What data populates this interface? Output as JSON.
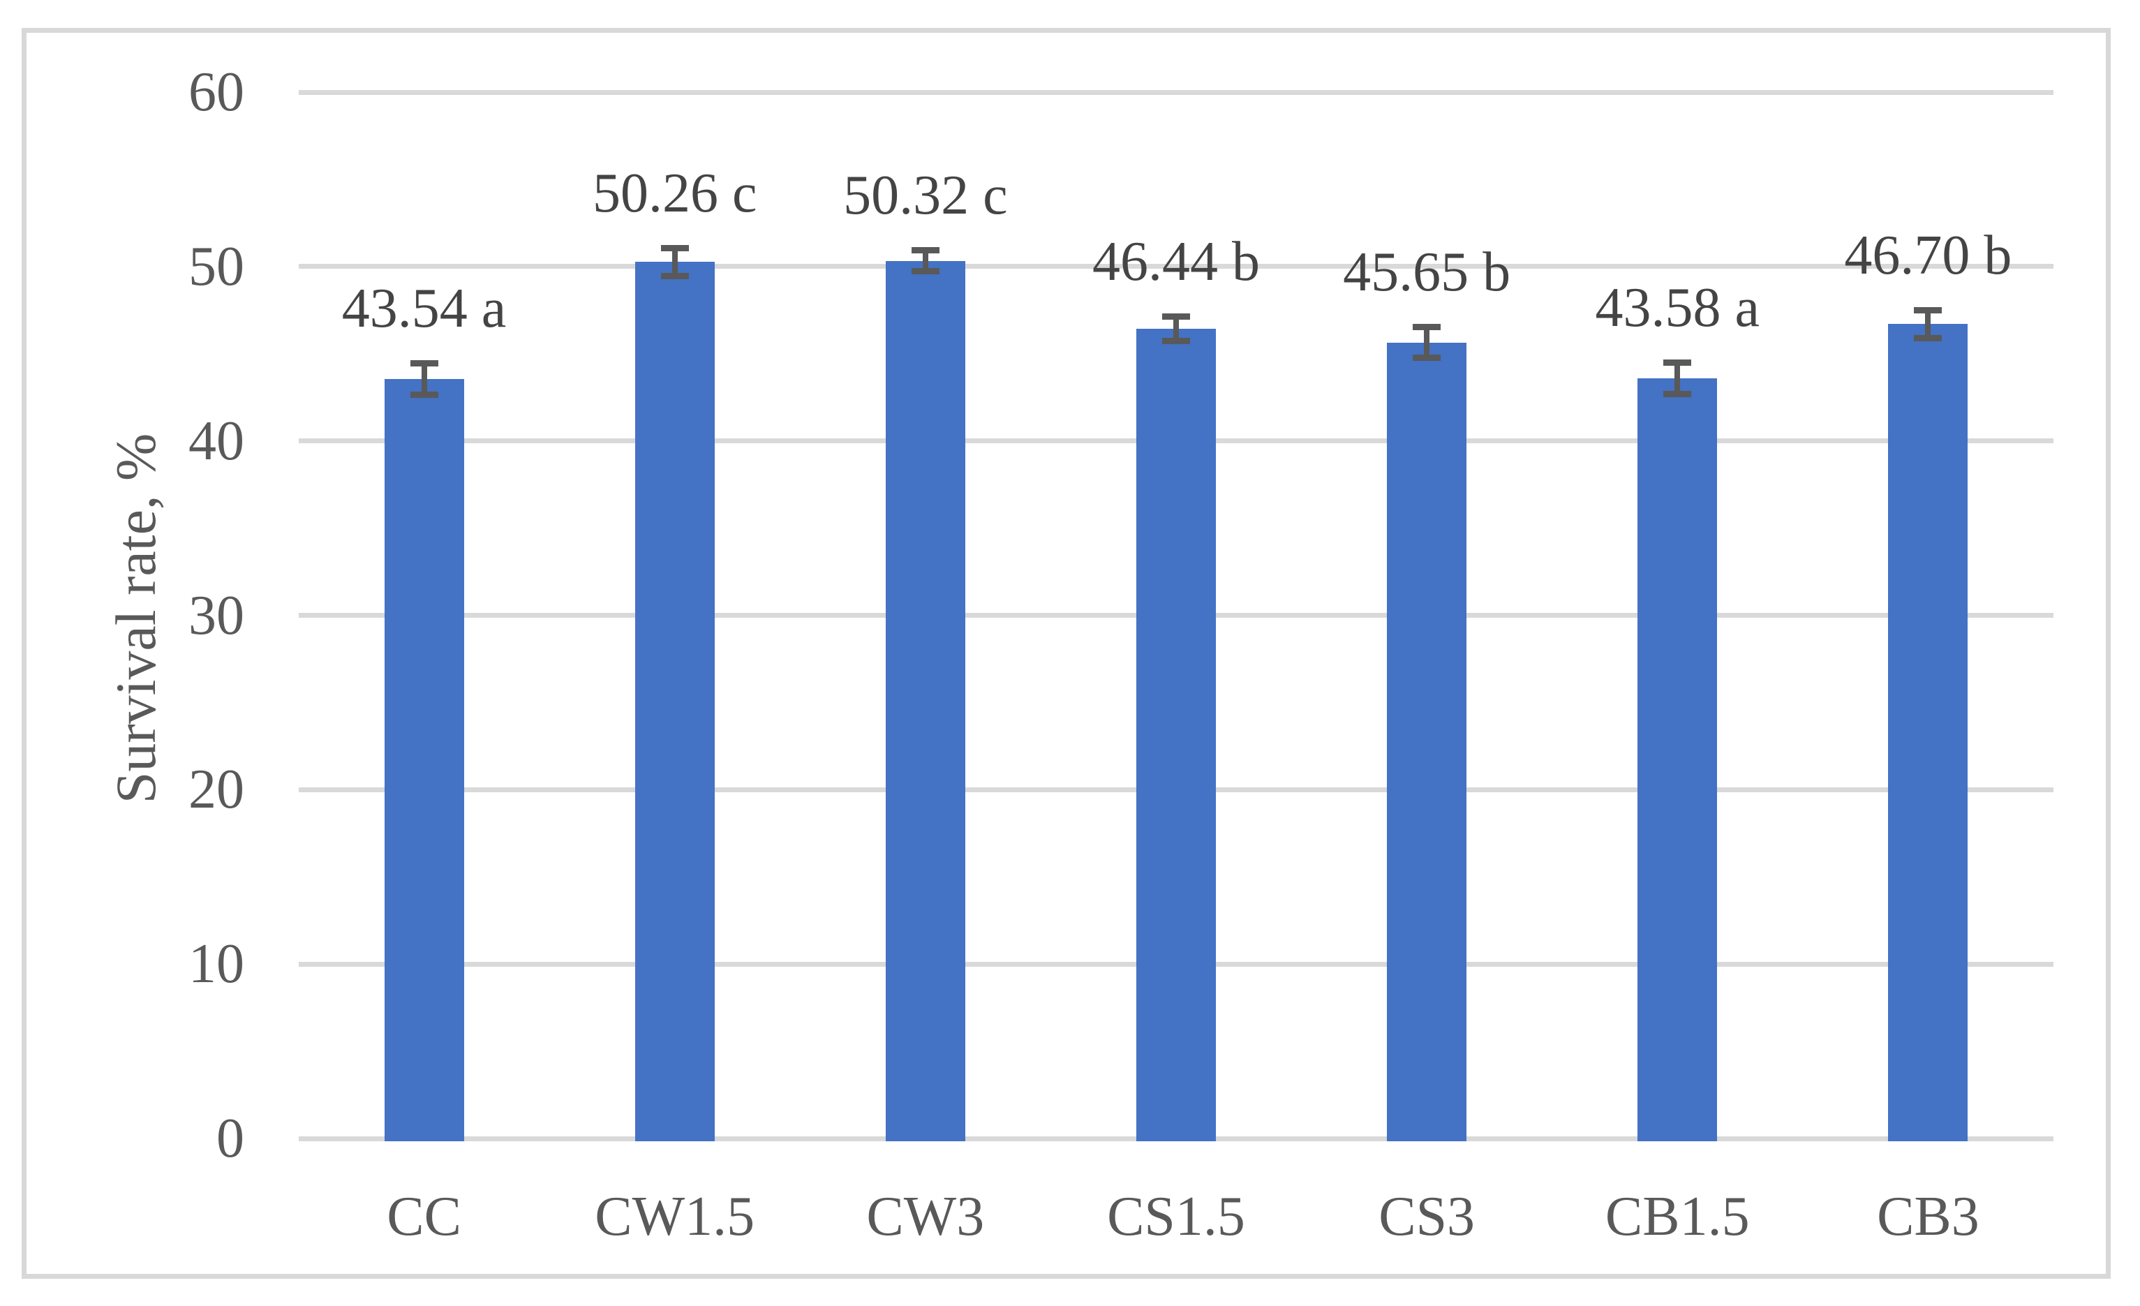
{
  "chart_data": {
    "type": "bar",
    "title": "",
    "xlabel": "",
    "ylabel": "Survival rate, %",
    "ylim": [
      0,
      60
    ],
    "ytick_step": 10,
    "ytick_labels": [
      "0",
      "10",
      "20",
      "30",
      "40",
      "50",
      "60"
    ],
    "grid": true,
    "legend": "none",
    "categories": [
      "CC",
      "CW1.5",
      "CW3",
      "CS1.5",
      "CS3",
      "CB1.5",
      "CB3"
    ],
    "series": [
      {
        "name": "Survival rate",
        "values": [
          43.54,
          50.26,
          50.32,
          46.44,
          45.65,
          43.58,
          46.7
        ],
        "errors": [
          0.8,
          0.7,
          0.5,
          0.6,
          0.8,
          0.8,
          0.7
        ],
        "data_labels": [
          "43.54 a",
          "50.26 c",
          "50.32 c",
          "46.44 b",
          "45.65 b",
          "43.58 a",
          "46.70 b"
        ]
      }
    ],
    "colors": {
      "bar": "#4472c4",
      "error_bar": "#595959",
      "gridline": "#d9d9d9",
      "frame_border": "#d8d8d8",
      "axis_text": "#595959",
      "label_text": "#444444",
      "background": "#ffffff"
    }
  }
}
